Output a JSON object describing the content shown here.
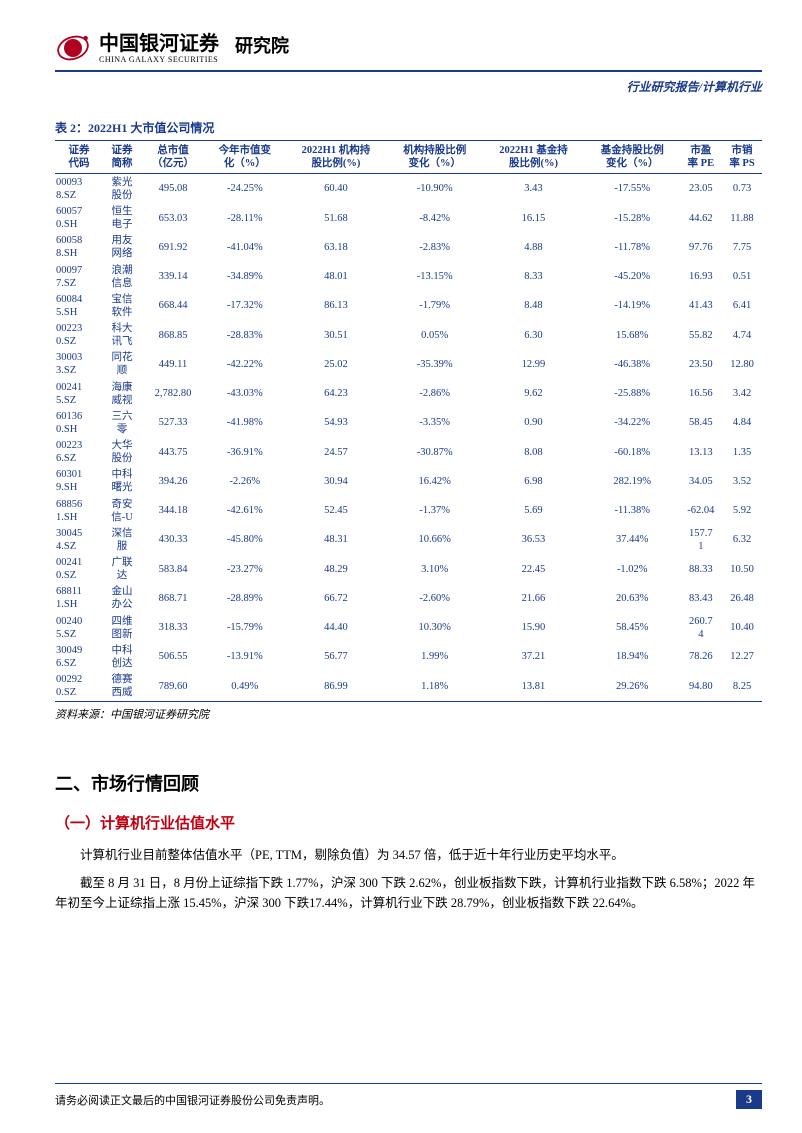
{
  "header": {
    "logo_cn": "中国银河证券",
    "logo_en": "CHINA GALAXY SECURITIES",
    "institute": "研究院",
    "top_right": "行业研究报告/计算机行业"
  },
  "table": {
    "caption": "表 2：2022H1 大市值公司情况",
    "columns": [
      "证券\n代码",
      "证券\n简称",
      "总市值\n（亿元）",
      "今年市值变\n化（%）",
      "2022H1 机构持\n股比例(%)",
      "机构持股比例\n变化（%）",
      "2022H1 基金持\n股比例(%)",
      "基金持股比例\n变化（%）",
      "市盈\n率 PE",
      "市销\n率 PS"
    ],
    "rows": [
      [
        "00093\n8.SZ",
        "紫光\n股份",
        "495.08",
        "-24.25%",
        "60.40",
        "-10.90%",
        "3.43",
        "-17.55%",
        "23.05",
        "0.73"
      ],
      [
        "60057\n0.SH",
        "恒生\n电子",
        "653.03",
        "-28.11%",
        "51.68",
        "-8.42%",
        "16.15",
        "-15.28%",
        "44.62",
        "11.88"
      ],
      [
        "60058\n8.SH",
        "用友\n网络",
        "691.92",
        "-41.04%",
        "63.18",
        "-2.83%",
        "4.88",
        "-11.78%",
        "97.76",
        "7.75"
      ],
      [
        "00097\n7.SZ",
        "浪潮\n信息",
        "339.14",
        "-34.89%",
        "48.01",
        "-13.15%",
        "8.33",
        "-45.20%",
        "16.93",
        "0.51"
      ],
      [
        "60084\n5.SH",
        "宝信\n软件",
        "668.44",
        "-17.32%",
        "86.13",
        "-1.79%",
        "8.48",
        "-14.19%",
        "41.43",
        "6.41"
      ],
      [
        "00223\n0.SZ",
        "科大\n讯飞",
        "868.85",
        "-28.83%",
        "30.51",
        "0.05%",
        "6.30",
        "15.68%",
        "55.82",
        "4.74"
      ],
      [
        "30003\n3.SZ",
        "同花\n顺",
        "449.11",
        "-42.22%",
        "25.02",
        "-35.39%",
        "12.99",
        "-46.38%",
        "23.50",
        "12.80"
      ],
      [
        "00241\n5.SZ",
        "海康\n威视",
        "2,782.80",
        "-43.03%",
        "64.23",
        "-2.86%",
        "9.62",
        "-25.88%",
        "16.56",
        "3.42"
      ],
      [
        "60136\n0.SH",
        "三六\n零",
        "527.33",
        "-41.98%",
        "54.93",
        "-3.35%",
        "0.90",
        "-34.22%",
        "58.45",
        "4.84"
      ],
      [
        "00223\n6.SZ",
        "大华\n股份",
        "443.75",
        "-36.91%",
        "24.57",
        "-30.87%",
        "8.08",
        "-60.18%",
        "13.13",
        "1.35"
      ],
      [
        "60301\n9.SH",
        "中科\n曙光",
        "394.26",
        "-2.26%",
        "30.94",
        "16.42%",
        "6.98",
        "282.19%",
        "34.05",
        "3.52"
      ],
      [
        "68856\n1.SH",
        "奇安\n信-U",
        "344.18",
        "-42.61%",
        "52.45",
        "-1.37%",
        "5.69",
        "-11.38%",
        "-62.04",
        "5.92"
      ],
      [
        "30045\n4.SZ",
        "深信\n服",
        "430.33",
        "-45.80%",
        "48.31",
        "10.66%",
        "36.53",
        "37.44%",
        "157.7\n1",
        "6.32"
      ],
      [
        "00241\n0.SZ",
        "广联\n达",
        "583.84",
        "-23.27%",
        "48.29",
        "3.10%",
        "22.45",
        "-1.02%",
        "88.33",
        "10.50"
      ],
      [
        "68811\n1.SH",
        "金山\n办公",
        "868.71",
        "-28.89%",
        "66.72",
        "-2.60%",
        "21.66",
        "20.63%",
        "83.43",
        "26.48"
      ],
      [
        "00240\n5.SZ",
        "四维\n图新",
        "318.33",
        "-15.79%",
        "44.40",
        "10.30%",
        "15.90",
        "58.45%",
        "260.7\n4",
        "10.40"
      ],
      [
        "30049\n6.SZ",
        "中科\n创达",
        "506.55",
        "-13.91%",
        "56.77",
        "1.99%",
        "37.21",
        "18.94%",
        "78.26",
        "12.27"
      ],
      [
        "00292\n0.SZ",
        "德赛\n西威",
        "789.60",
        "0.49%",
        "86.99",
        "1.18%",
        "13.81",
        "29.26%",
        "94.80",
        "8.25"
      ]
    ],
    "source": "资料来源：中国银河证券研究院"
  },
  "section": {
    "h2": "二、市场行情回顾",
    "h3": "（一）计算机行业估值水平",
    "p1": "计算机行业目前整体估值水平（PE, TTM，剔除负值）为 34.57 倍，低于近十年行业历史平均水平。",
    "p2": "截至 8 月 31 日，8 月份上证综指下跌 1.77%，沪深 300 下跌 2.62%，创业板指数下跌，计算机行业指数下跌 6.58%；2022 年年初至今上证综指上涨 15.45%，沪深 300 下跌17.44%，计算机行业下跌 28.79%，创业板指数下跌 22.64%。"
  },
  "footer": {
    "disclaimer": "请务必阅读正文最后的中国银河证券股份公司免责声明。",
    "page": "3"
  },
  "colors": {
    "brand_blue": "#1a3a8a",
    "accent_red": "#c00010"
  }
}
